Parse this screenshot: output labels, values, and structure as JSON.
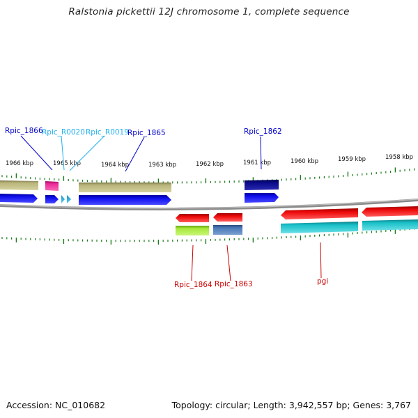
{
  "title": "Ralstonia pickettii 12J chromosome 1, complete sequence",
  "footer": {
    "accession": "Accession: NC_010682",
    "topology": "Topology: circular; Length: 3,942,557 bp; Genes: 3,767"
  },
  "colors": {
    "backbone": "#8a8a8a",
    "tick": "#1a7a1a",
    "label_blue": "#0000cc",
    "label_cyan": "#22b0ee",
    "label_red": "#cc0000",
    "gene_olive": "#b8b47a",
    "gene_magenta": "#ee2a9a",
    "gene_navy": "#0a0a8a",
    "gene_blue": "#1010ee",
    "gene_red": "#ee0a0a",
    "gene_lime": "#a8ea3a",
    "gene_steel": "#4a7ab8",
    "gene_teal": "#1ac0c8"
  },
  "scale_labels": [
    "1966 kbp",
    "1965 kbp",
    "1964 kbp",
    "1963 kbp",
    "1962 kbp",
    "1961 kbp",
    "1960 kbp",
    "1959 kbp",
    "1958 kbp"
  ],
  "gene_labels": {
    "rpic_1866": "Rpic_1866",
    "rpic_r0020": "Rpic_R0020",
    "rpic_r0019": "Rpic_R0019",
    "rpic_1865": "Rpic_1865",
    "rpic_1862": "Rpic_1862",
    "rpic_1864": "Rpic_1864",
    "rpic_1863": "Rpic_1863",
    "pgi": "pgi"
  }
}
